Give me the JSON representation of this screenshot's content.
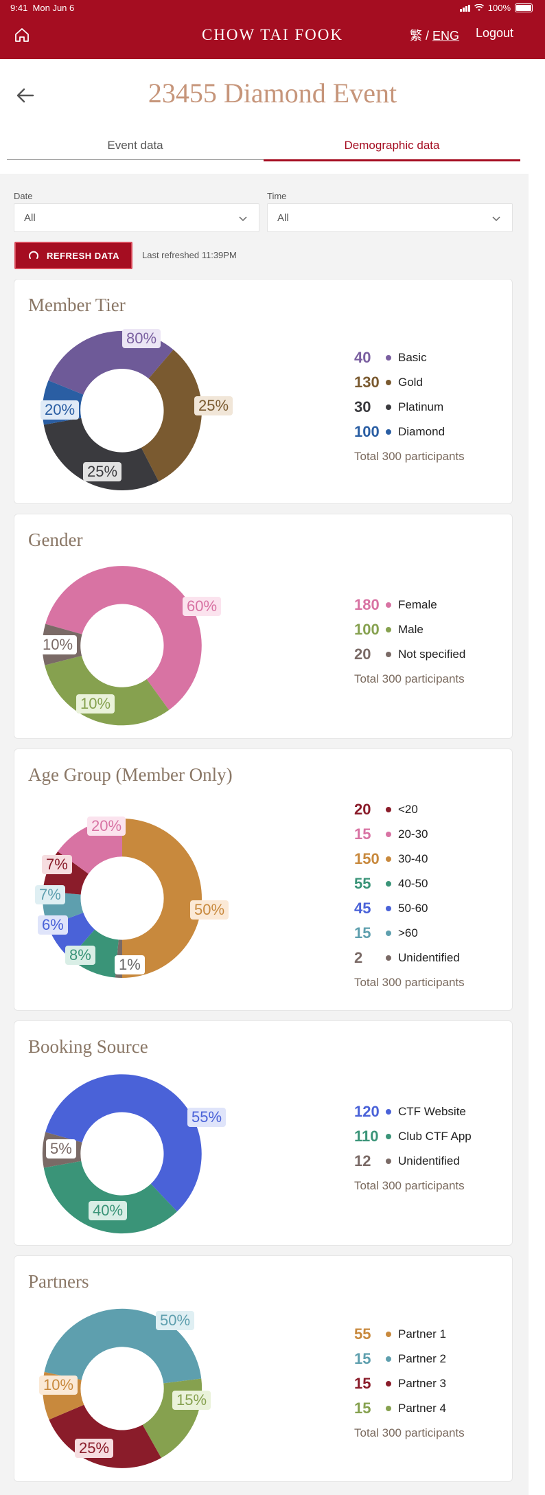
{
  "status": {
    "time": "9:41",
    "date": "Mon Jun 6",
    "battery": "100%"
  },
  "header": {
    "brand": "CHOW TAI FOOK",
    "lang_trad": "繁",
    "lang_sep": "/",
    "lang_eng": "ENG",
    "logout": "Logout"
  },
  "page": {
    "title": "23455 Diamond Event"
  },
  "tabs": [
    {
      "label": "Event data"
    },
    {
      "label": "Demographic data"
    }
  ],
  "filters": {
    "date_label": "Date",
    "date_value": "All",
    "time_label": "Time",
    "time_value": "All"
  },
  "refresh": {
    "button": "REFRESH DATA",
    "last": "Last refreshed 11:39PM"
  },
  "cards": [
    {
      "title": "Member Tier",
      "legend": [
        {
          "value": "40",
          "name": "Basic",
          "color": "#7a5fa0"
        },
        {
          "value": "130",
          "name": "Gold",
          "color": "#7a5a30"
        },
        {
          "value": "30",
          "name": "Platinum",
          "color": "#3a3a3e"
        },
        {
          "value": "100",
          "name": "Diamond",
          "color": "#2a5ea3"
        }
      ],
      "total": "Total 300 participants",
      "labels": [
        "80%",
        "25%",
        "25%",
        "20%"
      ]
    },
    {
      "title": "Gender",
      "legend": [
        {
          "value": "180",
          "name": "Female",
          "color": "#d873a3"
        },
        {
          "value": "100",
          "name": "Male",
          "color": "#86a14f"
        },
        {
          "value": "20",
          "name": "Not specified",
          "color": "#7a6a66"
        }
      ],
      "total": "Total 300 participants",
      "labels": [
        "60%",
        "10%",
        "10%"
      ]
    },
    {
      "title": "Age Group (Member Only)",
      "legend": [
        {
          "value": "20",
          "name": "<20",
          "color": "#8a1c2a"
        },
        {
          "value": "15",
          "name": "20-30",
          "color": "#d873a3"
        },
        {
          "value": "150",
          "name": "30-40",
          "color": "#c8893d"
        },
        {
          "value": "55",
          "name": "40-50",
          "color": "#3a9478"
        },
        {
          "value": "45",
          "name": "50-60",
          "color": "#4a62d8"
        },
        {
          "value": "15",
          "name": ">60",
          "color": "#5e9fae"
        },
        {
          "value": "2",
          "name": "Unidentified",
          "color": "#7a6a66"
        }
      ],
      "total": "Total 300 participants",
      "labels": [
        "20%",
        "50%",
        "1%",
        "8%",
        "6%",
        "7%",
        "7%"
      ]
    },
    {
      "title": "Booking Source",
      "legend": [
        {
          "value": "120",
          "name": "CTF Website",
          "color": "#4a62d8"
        },
        {
          "value": "110",
          "name": "Club CTF App",
          "color": "#3a9478"
        },
        {
          "value": "12",
          "name": "Unidentified",
          "color": "#7a6a66"
        }
      ],
      "total": "Total 300 participants",
      "labels": [
        "55%",
        "40%",
        "5%"
      ]
    },
    {
      "title": "Partners",
      "legend": [
        {
          "value": "55",
          "name": "Partner 1",
          "color": "#c8893d"
        },
        {
          "value": "15",
          "name": "Partner 2",
          "color": "#5e9fae"
        },
        {
          "value": "15",
          "name": "Partner 3",
          "color": "#8a1c2a"
        },
        {
          "value": "15",
          "name": "Partner 4",
          "color": "#86a14f"
        }
      ],
      "total": "Total 300 participants",
      "labels": [
        "50%",
        "15%",
        "25%",
        "10%"
      ]
    }
  ]
}
